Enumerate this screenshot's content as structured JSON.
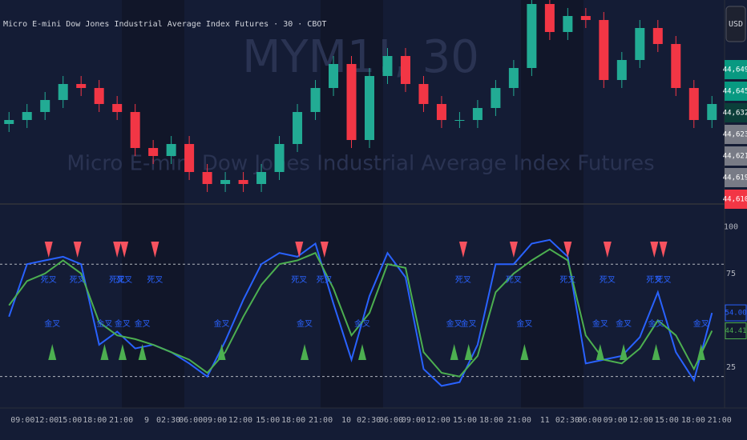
{
  "chart_data": [
    {
      "type": "candlestick",
      "title": "Micro E-mini Dow Jones Industrial Average Index Futures · 30 · CBOT",
      "watermark": "MYM1!, 30",
      "watermark_subtitle": "Micro E-mini Dow Jones Industrial Average Index Futures",
      "currency": "USD",
      "up_color": "#22ab94",
      "down_color": "#f23645",
      "xlim": [
        -0.5,
        39.7
      ],
      "ylim": [
        44605,
        44655
      ],
      "open": [
        44624,
        44625,
        44627,
        44630,
        44634,
        44633,
        44629,
        44627,
        44618,
        44616,
        44619,
        44612,
        44609,
        44610,
        44609,
        44612,
        44619,
        44627,
        44633,
        44639,
        44620,
        44636,
        44641,
        44634,
        44629,
        44625,
        44625,
        44628,
        44633,
        44638,
        44654,
        44647,
        44651,
        44650,
        44635,
        44640,
        44648,
        44644,
        44633,
        44625
      ],
      "high": [
        44627,
        44629,
        44632,
        44636,
        44636,
        44635,
        44631,
        44629,
        44620,
        44621,
        44621,
        44614,
        44612,
        44612,
        44614,
        44621,
        44629,
        44635,
        44641,
        44641,
        44638,
        44643,
        44643,
        44636,
        44631,
        44627,
        44630,
        44635,
        44640,
        44656,
        44656,
        44653,
        44653,
        44652,
        44642,
        44650,
        44650,
        44646,
        44635,
        44631
      ],
      "low": [
        44622,
        44623,
        44625,
        44628,
        44631,
        44627,
        44625,
        44616,
        44614,
        44614,
        44610,
        44607,
        44607,
        44607,
        44607,
        44610,
        44617,
        44625,
        44631,
        44618,
        44618,
        44634,
        44632,
        44627,
        44623,
        44623,
        44623,
        44626,
        44631,
        44636,
        44645,
        44645,
        44648,
        44633,
        44633,
        44638,
        44642,
        44631,
        44623,
        44623
      ],
      "close": [
        44625,
        44627,
        44630,
        44634,
        44633,
        44629,
        44627,
        44618,
        44616,
        44619,
        44612,
        44609,
        44610,
        44609,
        44612,
        44619,
        44627,
        44633,
        44639,
        44620,
        44636,
        44641,
        44634,
        44629,
        44625,
        44625,
        44628,
        44633,
        44638,
        44654,
        44647,
        44651,
        44650,
        44635,
        44640,
        44648,
        44644,
        44633,
        44625,
        44629
      ],
      "price_tags": [
        {
          "value": 44649,
          "label": "44,649",
          "color": "#089981"
        },
        {
          "value": 44645,
          "label": "44,645",
          "color": "#089981"
        },
        {
          "value": 44632,
          "label": "44,632",
          "color": "#0b3f3a"
        },
        {
          "value": 44623,
          "label": "44,623",
          "color": "#787b86"
        },
        {
          "value": 44621,
          "label": "44,621",
          "color": "#787b86"
        },
        {
          "value": 44619,
          "label": "44,619",
          "color": "#787b86"
        },
        {
          "value": 44610,
          "label": "44,610",
          "color": "#f23645"
        }
      ]
    },
    {
      "type": "line",
      "xlim": [
        -0.5,
        39.7
      ],
      "ylim": [
        3.2,
        110
      ],
      "yticks": [
        25,
        75,
        100
      ],
      "levels": [
        20,
        80
      ],
      "series": [
        {
          "color": "#2962ff",
          "last_label": "54.00",
          "values": [
            52,
            80,
            82,
            84,
            80,
            37,
            44,
            35,
            37,
            33,
            27,
            20,
            39,
            61,
            80,
            86,
            84,
            91,
            59,
            29,
            63,
            86,
            73,
            24,
            15,
            17,
            37,
            80,
            80,
            91,
            93,
            84,
            27,
            29,
            31,
            41,
            65,
            33,
            18,
            54
          ]
        },
        {
          "color": "#4caf50",
          "last_label": "44.41",
          "values": [
            58,
            71,
            75,
            82,
            75,
            49,
            42,
            40,
            37,
            33,
            29,
            22,
            33,
            52,
            69,
            80,
            82,
            86,
            67,
            42,
            54,
            80,
            78,
            33,
            22,
            20,
            31,
            65,
            75,
            82,
            88,
            82,
            42,
            29,
            27,
            35,
            50,
            42,
            24,
            44.41
          ]
        }
      ],
      "sell_signals": {
        "label": "死叉",
        "color": "#f7525f",
        "x": [
          2.2,
          3.8,
          6,
          6.4,
          8.1,
          16.1,
          17.5,
          25.2,
          28,
          31,
          33.2,
          35.8,
          36.3
        ]
      },
      "buy_signals": {
        "label": "金叉",
        "color": "#4caf50",
        "x": [
          2.4,
          5.3,
          6.3,
          7.4,
          11.8,
          16.4,
          19.6,
          24.7,
          25.5,
          28.6,
          32.8,
          34.1,
          35.9,
          38.4
        ]
      },
      "xticks": [
        {
          "value": 0.76,
          "label": "09:00"
        },
        {
          "value": 2.09,
          "label": "12:00"
        },
        {
          "value": 3.38,
          "label": "15:00"
        },
        {
          "value": 4.76,
          "label": "18:00"
        },
        {
          "value": 6.22,
          "label": "21:00"
        },
        {
          "value": 7.64,
          "label": "9"
        },
        {
          "value": 8.84,
          "label": "02:30"
        },
        {
          "value": 10.09,
          "label": "06:00"
        },
        {
          "value": 11.42,
          "label": "09:00"
        },
        {
          "value": 12.84,
          "label": "12:00"
        },
        {
          "value": 14.36,
          "label": "15:00"
        },
        {
          "value": 15.78,
          "label": "18:00"
        },
        {
          "value": 17.29,
          "label": "21:00"
        },
        {
          "value": 18.71,
          "label": "10"
        },
        {
          "value": 19.96,
          "label": "02:30"
        },
        {
          "value": 21.2,
          "label": "06:00"
        },
        {
          "value": 22.44,
          "label": "09:00"
        },
        {
          "value": 23.82,
          "label": "12:00"
        },
        {
          "value": 25.29,
          "label": "15:00"
        },
        {
          "value": 26.76,
          "label": "18:00"
        },
        {
          "value": 28.31,
          "label": "21:00"
        },
        {
          "value": 29.73,
          "label": "11"
        },
        {
          "value": 30.98,
          "label": "02:30"
        },
        {
          "value": 32.22,
          "label": "06:00"
        },
        {
          "value": 33.64,
          "label": "09:00"
        },
        {
          "value": 35.07,
          "label": "12:00"
        },
        {
          "value": 36.49,
          "label": "15:00"
        },
        {
          "value": 37.96,
          "label": "18:00"
        },
        {
          "value": 39.42,
          "label": "21:00"
        }
      ]
    }
  ]
}
